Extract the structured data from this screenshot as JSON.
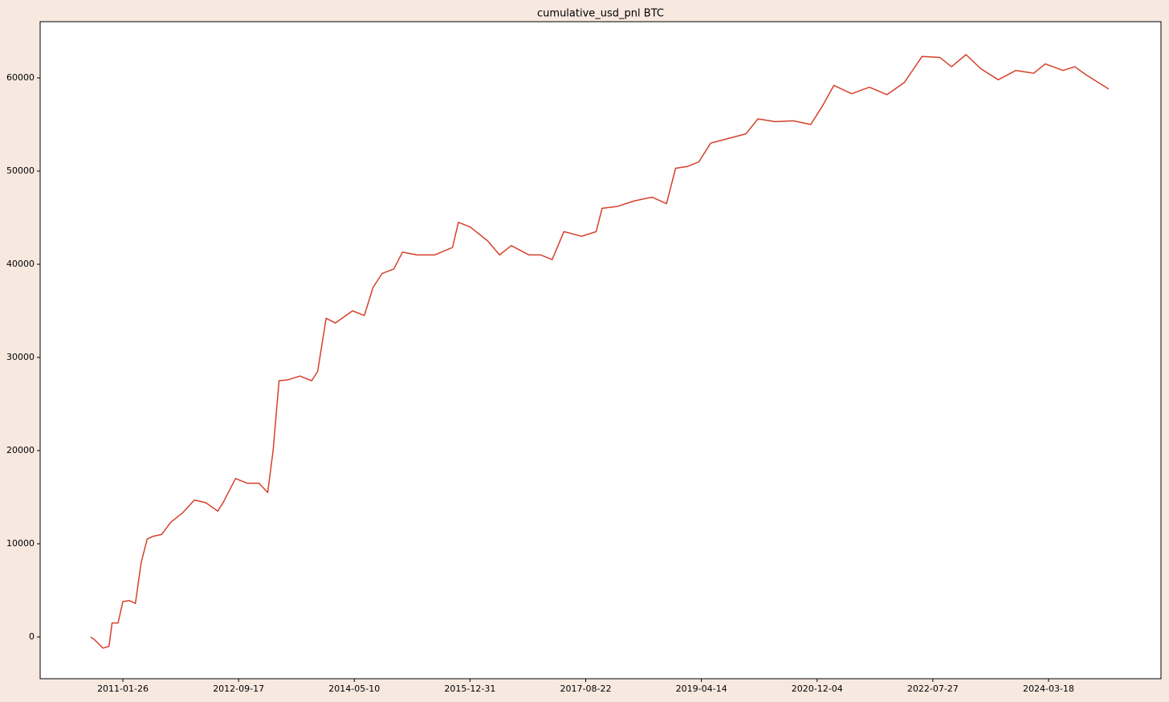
{
  "chart_data": {
    "type": "line",
    "title": "cumulative_usd_pnl BTC",
    "x": [
      "2010-08-12",
      "2010-09-01",
      "2010-10-15",
      "2010-11-15",
      "2010-12-01",
      "2011-01-01",
      "2011-01-26",
      "2011-03-01",
      "2011-04-01",
      "2011-05-01",
      "2011-06-01",
      "2011-07-01",
      "2011-08-15",
      "2011-10-01",
      "2011-12-01",
      "2012-02-01",
      "2012-04-01",
      "2012-06-01",
      "2012-07-01",
      "2012-09-01",
      "2012-11-01",
      "2013-01-01",
      "2013-02-15",
      "2013-03-15",
      "2013-04-15",
      "2013-06-01",
      "2013-08-01",
      "2013-10-01",
      "2013-11-01",
      "2013-12-15",
      "2014-02-01",
      "2014-05-01",
      "2014-07-01",
      "2014-08-15",
      "2014-10-01",
      "2014-12-01",
      "2015-01-15",
      "2015-04-01",
      "2015-07-01",
      "2015-10-01",
      "2015-11-01",
      "2016-01-01",
      "2016-04-01",
      "2016-06-01",
      "2016-08-01",
      "2016-11-01",
      "2017-01-01",
      "2017-03-01",
      "2017-05-01",
      "2017-08-01",
      "2017-10-15",
      "2017-11-15",
      "2018-02-01",
      "2018-05-01",
      "2018-08-01",
      "2018-10-15",
      "2018-12-01",
      "2019-02-01",
      "2019-04-01",
      "2019-06-01",
      "2019-09-01",
      "2019-12-01",
      "2020-02-01",
      "2020-05-01",
      "2020-08-01",
      "2020-11-01",
      "2021-01-01",
      "2021-03-01",
      "2021-06-01",
      "2021-09-01",
      "2021-12-01",
      "2022-03-01",
      "2022-06-01",
      "2022-09-01",
      "2022-11-01",
      "2023-01-15",
      "2023-04-01",
      "2023-07-01",
      "2023-10-01",
      "2024-01-01",
      "2024-03-01",
      "2024-06-01",
      "2024-08-01",
      "2024-10-01",
      "2024-12-01",
      "2025-01-24"
    ],
    "series": [
      {
        "name": "cumulative_usd_pnl",
        "color": "#d6402b",
        "values": [
          0,
          -300,
          -1200,
          -1000,
          1500,
          1500,
          3800,
          3900,
          3600,
          8000,
          10500,
          10800,
          11000,
          12300,
          13300,
          14700,
          14400,
          13500,
          14500,
          17000,
          16500,
          16500,
          15500,
          20000,
          27500,
          27600,
          28000,
          27500,
          28500,
          34200,
          33700,
          35000,
          34500,
          37500,
          39000,
          39500,
          41300,
          41000,
          41000,
          41800,
          44500,
          44000,
          42500,
          41000,
          42000,
          41000,
          41000,
          40500,
          43500,
          43000,
          43500,
          46000,
          46200,
          46800,
          47200,
          46500,
          50300,
          50500,
          51000,
          53000,
          53500,
          54000,
          55600,
          55300,
          55400,
          55000,
          57000,
          59200,
          58300,
          59000,
          58200,
          59500,
          62300,
          62200,
          61200,
          62500,
          61000,
          59800,
          60800,
          60500,
          61500,
          60800,
          61200,
          60300,
          59500,
          58800
        ]
      }
    ],
    "xlim": [
      "2009-11-23",
      "2025-10-22"
    ],
    "xticks": [
      "2011-01-26",
      "2012-09-17",
      "2014-05-10",
      "2015-12-31",
      "2017-08-22",
      "2019-04-14",
      "2020-12-04",
      "2022-07-27",
      "2024-03-18"
    ],
    "ylim": [
      -4483,
      66034
    ],
    "yticks": [
      0,
      10000,
      20000,
      30000,
      40000,
      50000,
      60000
    ],
    "grid": false
  }
}
